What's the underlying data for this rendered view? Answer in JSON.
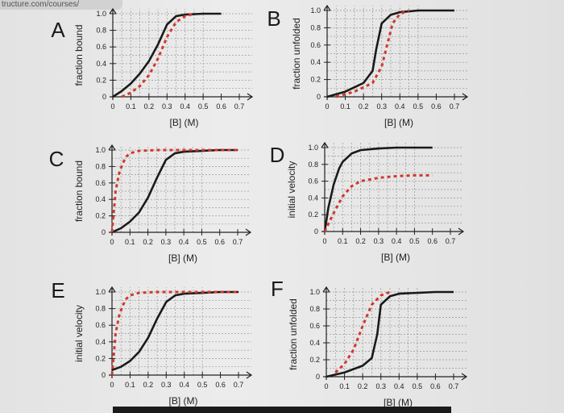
{
  "browser": {
    "url_fragment": "tructure.com/courses/"
  },
  "chart_data": [
    {
      "type": "line",
      "panel": "A",
      "xlabel": "[B] (M)",
      "ylabel": "fraction bound",
      "xticks": [
        "0",
        "0.1",
        "0.2",
        "0.3",
        "0.4",
        "0.5",
        "0.6",
        "0.7"
      ],
      "yticks": [
        "0",
        "0.2",
        "0.4",
        "0.6",
        "0.8",
        "1.0"
      ],
      "xlim": [
        0,
        0.7
      ],
      "ylim": [
        0,
        1.0
      ],
      "series": [
        {
          "style": "solid",
          "color": "#1a1a1a",
          "x": [
            0,
            0.05,
            0.1,
            0.15,
            0.2,
            0.25,
            0.3,
            0.35,
            0.4,
            0.5,
            0.6,
            0.7
          ],
          "y": [
            0,
            0.07,
            0.16,
            0.28,
            0.43,
            0.63,
            0.87,
            0.97,
            0.99,
            1.0,
            1.0,
            null
          ]
        },
        {
          "style": "dashed",
          "color": "#d23a2e",
          "x": [
            0.05,
            0.1,
            0.15,
            0.2,
            0.25,
            0.3,
            0.35,
            0.4,
            0.45
          ],
          "y": [
            0.0,
            0.05,
            0.13,
            0.26,
            0.46,
            0.72,
            0.9,
            0.97,
            1.0
          ]
        }
      ]
    },
    {
      "type": "line",
      "panel": "B",
      "xlabel": "[B] (M)",
      "ylabel": "fraction unfolded",
      "xticks": [
        "0",
        "0.1",
        "0.2",
        "0.3",
        "0.4",
        "0.5",
        "0.6",
        "0.7"
      ],
      "yticks": [
        "0",
        "0.2",
        "0.4",
        "0.6",
        "0.8",
        "1.0"
      ],
      "xlim": [
        0,
        0.7
      ],
      "ylim": [
        0,
        1.0
      ],
      "series": [
        {
          "style": "solid",
          "color": "#1a1a1a",
          "x": [
            0,
            0.1,
            0.2,
            0.25,
            0.27,
            0.3,
            0.35,
            0.4,
            0.5,
            0.6,
            0.7
          ],
          "y": [
            0,
            0.06,
            0.16,
            0.3,
            0.55,
            0.85,
            0.95,
            0.98,
            1.0,
            1.0,
            1.0
          ]
        },
        {
          "style": "dashed",
          "color": "#d23a2e",
          "x": [
            0.05,
            0.15,
            0.25,
            0.3,
            0.33,
            0.36,
            0.4,
            0.45
          ],
          "y": [
            0.0,
            0.06,
            0.16,
            0.35,
            0.6,
            0.85,
            0.96,
            1.0
          ]
        }
      ]
    },
    {
      "type": "line",
      "panel": "C",
      "xlabel": "[B] (M)",
      "ylabel": "fraction bound",
      "xticks": [
        "0",
        "0.1",
        "0.2",
        "0.3",
        "0.4",
        "0.5",
        "0.6",
        "0.7"
      ],
      "yticks": [
        "0",
        "0.2",
        "0.4",
        "0.6",
        "0.8",
        "1.0"
      ],
      "xlim": [
        0,
        0.7
      ],
      "ylim": [
        0,
        1.0
      ],
      "series": [
        {
          "style": "solid",
          "color": "#1a1a1a",
          "x": [
            0,
            0.05,
            0.1,
            0.15,
            0.2,
            0.25,
            0.3,
            0.35,
            0.4,
            0.5,
            0.6,
            0.7
          ],
          "y": [
            0,
            0.05,
            0.13,
            0.24,
            0.42,
            0.66,
            0.88,
            0.96,
            0.98,
            0.99,
            1.0,
            1.0
          ]
        },
        {
          "style": "dashed",
          "color": "#d23a2e",
          "x": [
            0,
            0.01,
            0.02,
            0.04,
            0.06,
            0.08,
            0.1,
            0.15,
            0.25,
            0.4,
            0.55,
            0.7
          ],
          "y": [
            0,
            0.25,
            0.5,
            0.72,
            0.84,
            0.92,
            0.96,
            0.99,
            1.0,
            1.0,
            1.0,
            1.0
          ]
        }
      ]
    },
    {
      "type": "line",
      "panel": "D",
      "xlabel": "[B] (M)",
      "ylabel": "initial velocity",
      "xticks": [
        "0",
        "0.1",
        "0.2",
        "0.3",
        "0.4",
        "0.5",
        "0.6",
        "0.7"
      ],
      "yticks": [
        "0",
        "0.2",
        "0.4",
        "0.6",
        "0.8",
        "1.0"
      ],
      "xlim": [
        0,
        0.7
      ],
      "ylim": [
        0,
        1.0
      ],
      "series": [
        {
          "style": "solid",
          "color": "#1a1a1a",
          "x": [
            0,
            0.02,
            0.05,
            0.08,
            0.1,
            0.15,
            0.2,
            0.3,
            0.4,
            0.5,
            0.6
          ],
          "y": [
            0,
            0.28,
            0.56,
            0.75,
            0.83,
            0.93,
            0.97,
            0.99,
            1.0,
            1.0,
            1.0
          ]
        },
        {
          "style": "dashed",
          "color": "#d23a2e",
          "x": [
            0,
            0.05,
            0.1,
            0.15,
            0.2,
            0.3,
            0.4,
            0.5,
            0.6
          ],
          "y": [
            0,
            0.22,
            0.42,
            0.54,
            0.6,
            0.64,
            0.66,
            0.67,
            0.67
          ]
        }
      ]
    },
    {
      "type": "line",
      "panel": "E",
      "xlabel": "[B] (M)",
      "ylabel": "initial velocity",
      "xticks": [
        "0",
        "0.1",
        "0.2",
        "0.3",
        "0.4",
        "0.5",
        "0.6",
        "0.7"
      ],
      "yticks": [
        "0",
        "0.2",
        "0.4",
        "0.6",
        "0.8",
        "1.0"
      ],
      "xlim": [
        0,
        0.7
      ],
      "ylim": [
        0,
        1.0
      ],
      "series": [
        {
          "style": "solid",
          "color": "#1a1a1a",
          "x": [
            0,
            0.05,
            0.1,
            0.15,
            0.2,
            0.25,
            0.3,
            0.35,
            0.4,
            0.5,
            0.6,
            0.7
          ],
          "y": [
            0.06,
            0.1,
            0.17,
            0.28,
            0.45,
            0.68,
            0.88,
            0.96,
            0.98,
            0.99,
            1.0,
            1.0
          ]
        },
        {
          "style": "dashed",
          "color": "#d23a2e",
          "x": [
            0,
            0.01,
            0.02,
            0.04,
            0.06,
            0.08,
            0.1,
            0.15,
            0.25,
            0.4,
            0.55,
            0.7
          ],
          "y": [
            0,
            0.25,
            0.5,
            0.72,
            0.84,
            0.92,
            0.96,
            0.99,
            1.0,
            1.0,
            1.0,
            1.0
          ]
        }
      ]
    },
    {
      "type": "line",
      "panel": "F",
      "xlabel": "[B] (M)",
      "ylabel": "fraction unfolded",
      "xticks": [
        "0",
        "0.1",
        "0.2",
        "0.3",
        "0.4",
        "0.5",
        "0.6",
        "0.7"
      ],
      "yticks": [
        "0",
        "0.2",
        "0.4",
        "0.6",
        "0.8",
        "1.0"
      ],
      "xlim": [
        0,
        0.7
      ],
      "ylim": [
        0,
        1.0
      ],
      "series": [
        {
          "style": "solid",
          "color": "#1a1a1a",
          "x": [
            0,
            0.1,
            0.2,
            0.25,
            0.28,
            0.3,
            0.35,
            0.4,
            0.5,
            0.6,
            0.7
          ],
          "y": [
            0,
            0.05,
            0.13,
            0.22,
            0.5,
            0.85,
            0.95,
            0.98,
            0.99,
            1.0,
            1.0
          ]
        },
        {
          "style": "dashed",
          "color": "#d23a2e",
          "x": [
            0.05,
            0.1,
            0.15,
            0.2,
            0.25,
            0.3,
            0.35
          ],
          "y": [
            0.05,
            0.15,
            0.32,
            0.6,
            0.85,
            0.96,
            1.0
          ]
        }
      ]
    }
  ]
}
